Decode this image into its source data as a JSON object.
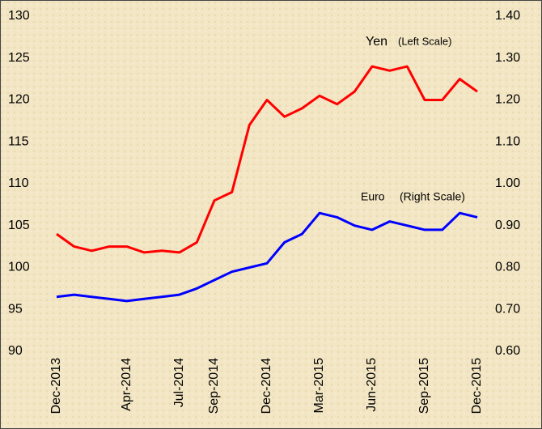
{
  "chart_data": {
    "type": "line",
    "x": [
      "Dec-2013",
      "Jan-2014",
      "Feb-2014",
      "Mar-2014",
      "Apr-2014",
      "May-2014",
      "Jun-2014",
      "Jul-2014",
      "Aug-2014",
      "Sep-2014",
      "Oct-2014",
      "Nov-2014",
      "Dec-2014",
      "Jan-2015",
      "Feb-2015",
      "Mar-2015",
      "Apr-2015",
      "May-2015",
      "Jun-2015",
      "Jul-2015",
      "Aug-2015",
      "Sep-2015",
      "Oct-2015",
      "Nov-2015",
      "Dec-2015"
    ],
    "xticks": [
      "Dec-2013",
      "Apr-2014",
      "Jul-2014",
      "Sep-2014",
      "Dec-2014",
      "Mar-2015",
      "Jun-2015",
      "Sep-2015",
      "Dec-2015"
    ],
    "series": [
      {
        "name": "Yen",
        "color": "#ff0000",
        "axis": "y",
        "values": [
          104,
          102.5,
          102,
          102.5,
          102.5,
          101.8,
          102,
          101.8,
          103,
          108,
          109,
          117,
          120,
          118,
          119,
          120.5,
          119.5,
          121,
          124,
          123.5,
          124,
          120,
          120,
          122.5,
          121
        ]
      },
      {
        "name": "Euro",
        "color": "#0000ff",
        "axis": "y2",
        "values": [
          0.73,
          0.735,
          0.73,
          0.725,
          0.72,
          0.725,
          0.73,
          0.735,
          0.75,
          0.77,
          0.79,
          0.8,
          0.81,
          0.86,
          0.88,
          0.93,
          0.92,
          0.9,
          0.89,
          0.91,
          0.9,
          0.89,
          0.89,
          0.93,
          0.92
        ]
      }
    ],
    "annotations": [
      "(Left Scale)",
      "(Right Scale)"
    ],
    "ylim": [
      90,
      130
    ],
    "yticks": [
      90,
      95,
      100,
      105,
      110,
      115,
      120,
      125,
      130
    ],
    "y2lim": [
      0.6,
      1.4
    ],
    "y2ticks": [
      {
        "value": 0.6,
        "label": "0.60"
      },
      {
        "value": 0.7,
        "label": "0.70"
      },
      {
        "value": 0.8,
        "label": "0.80"
      },
      {
        "value": 0.9,
        "label": "0.90"
      },
      {
        "value": 1.0,
        "label": "1.00"
      },
      {
        "value": 1.1,
        "label": "1.10"
      },
      {
        "value": 1.2,
        "label": "1.20"
      },
      {
        "value": 1.3,
        "label": "1.30"
      },
      {
        "value": 1.4,
        "label": "1.40"
      }
    ],
    "grid": false
  }
}
